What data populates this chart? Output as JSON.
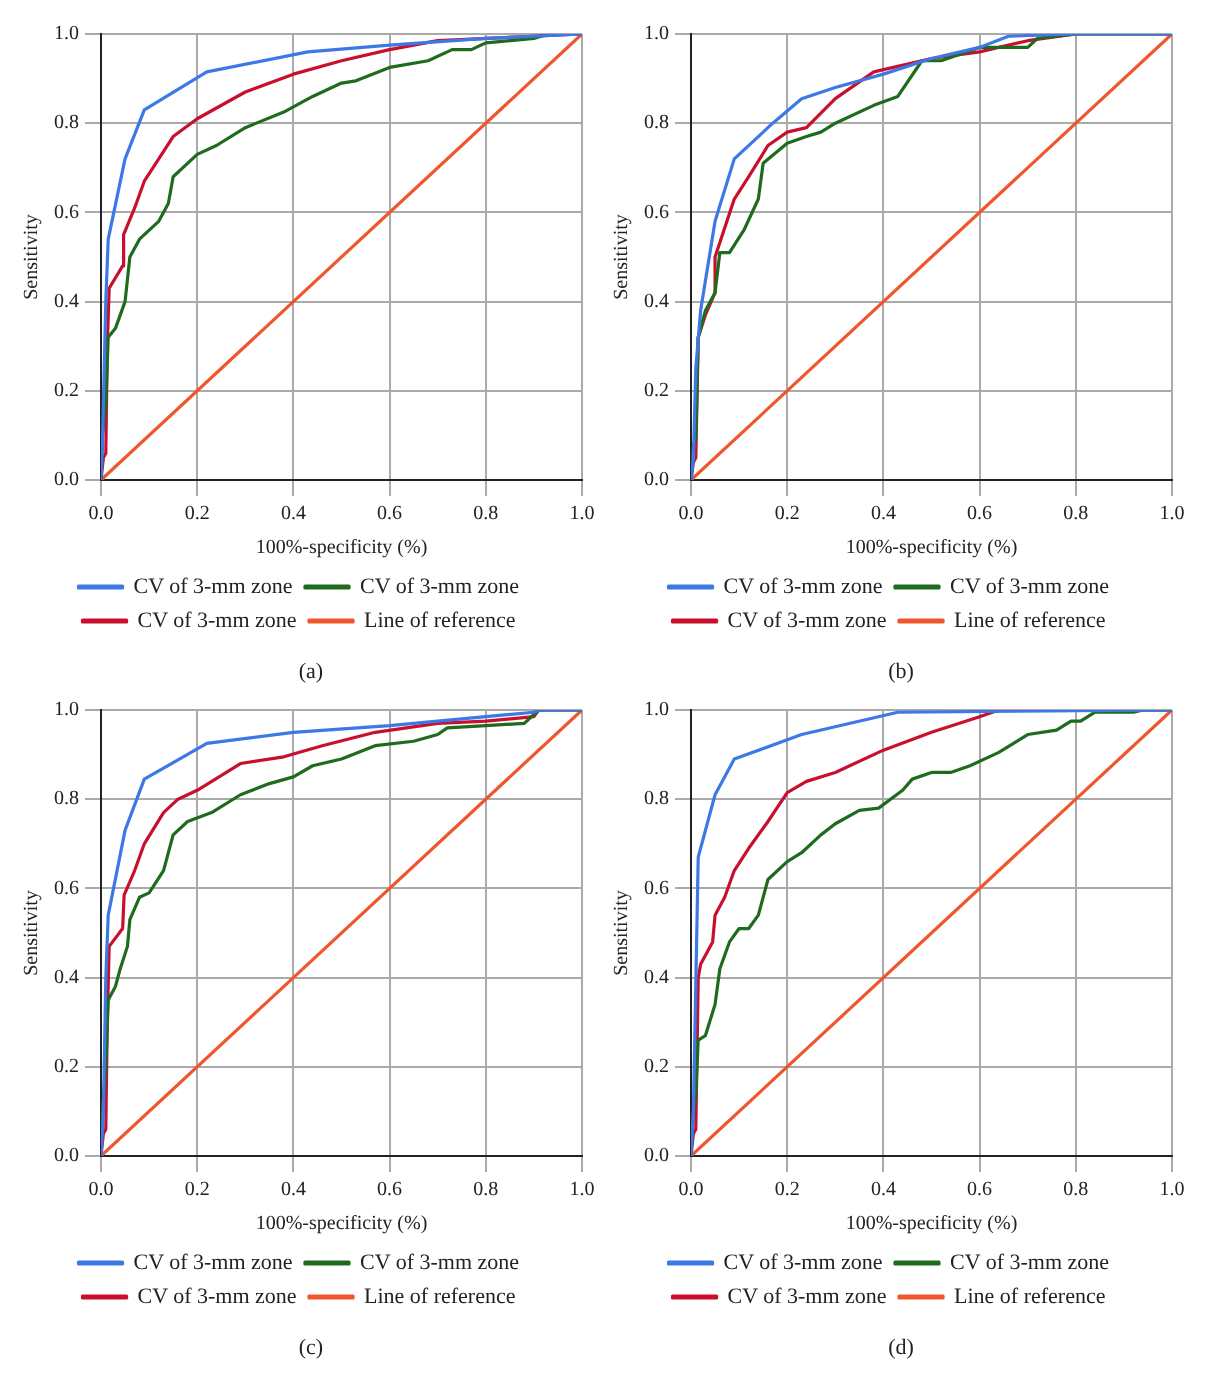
{
  "chart_data": [
    {
      "type": "line",
      "xlabel": "100%-specificity (%)",
      "ylabel": "Sensitivity",
      "annotations": [
        "(a)"
      ],
      "xlim": [
        0,
        1
      ],
      "ylim": [
        0,
        1
      ],
      "xticks": [
        {
          "value": 0,
          "label": "0.0"
        },
        {
          "value": 0.2,
          "label": "0.2"
        },
        {
          "value": 0.4,
          "label": "0.4"
        },
        {
          "value": 0.6,
          "label": "0.6"
        },
        {
          "value": 0.8,
          "label": "0.8"
        },
        {
          "value": 1,
          "label": "1.0"
        }
      ],
      "yticks": [
        {
          "value": 0,
          "label": "0.0"
        },
        {
          "value": 0.2,
          "label": "0.2"
        },
        {
          "value": 0.4,
          "label": "0.4"
        },
        {
          "value": 0.6,
          "label": "0.6"
        },
        {
          "value": 0.8,
          "label": "0.8"
        },
        {
          "value": 1,
          "label": "1.0"
        }
      ],
      "grid": true,
      "legend": "bottom",
      "marker": "none",
      "line_style": "solid",
      "series": [
        {
          "name": "CV of 3-mm zone",
          "color": "#3c78e6",
          "x": [
            0,
            0.003,
            0.01,
            0.015,
            0.05,
            0.09,
            0.22,
            0.43,
            0.6,
            0.8,
            0.9,
            1
          ],
          "values": [
            0,
            0.08,
            0.4,
            0.54,
            0.72,
            0.83,
            0.915,
            0.96,
            0.975,
            0.99,
            0.995,
            1
          ]
        },
        {
          "name": "CV of 3-mm zone",
          "color": "#1e6b1e",
          "x": [
            0,
            0.003,
            0.01,
            0.015,
            0.03,
            0.05,
            0.06,
            0.08,
            0.12,
            0.14,
            0.15,
            0.2,
            0.24,
            0.3,
            0.38,
            0.44,
            0.5,
            0.53,
            0.6,
            0.68,
            0.73,
            0.77,
            0.8,
            0.9,
            0.93,
            1
          ],
          "values": [
            0,
            0.1,
            0.17,
            0.32,
            0.34,
            0.4,
            0.5,
            0.54,
            0.58,
            0.62,
            0.68,
            0.73,
            0.75,
            0.79,
            0.825,
            0.86,
            0.89,
            0.895,
            0.925,
            0.94,
            0.965,
            0.965,
            0.98,
            0.99,
            1,
            1
          ]
        },
        {
          "name": "CV of 3-mm zone",
          "color": "#c8102e",
          "x": [
            0,
            0.005,
            0.01,
            0.013,
            0.017,
            0.045,
            0.047,
            0.07,
            0.09,
            0.15,
            0.2,
            0.3,
            0.4,
            0.5,
            0.6,
            0.7,
            0.9,
            1
          ],
          "values": [
            0,
            0.05,
            0.06,
            0.3,
            0.43,
            0.48,
            0.55,
            0.61,
            0.67,
            0.77,
            0.81,
            0.87,
            0.91,
            0.94,
            0.965,
            0.985,
            0.995,
            1
          ]
        },
        {
          "name": "Line of reference",
          "color": "#f0562e",
          "x": [
            0,
            1
          ],
          "values": [
            0,
            1
          ]
        }
      ]
    },
    {
      "type": "line",
      "xlabel": "100%-specificity (%)",
      "ylabel": "Sensitivity",
      "annotations": [
        "(b)"
      ],
      "xlim": [
        0,
        1
      ],
      "ylim": [
        0,
        1
      ],
      "xticks": [
        {
          "value": 0,
          "label": "0.0"
        },
        {
          "value": 0.2,
          "label": "0.2"
        },
        {
          "value": 0.4,
          "label": "0.4"
        },
        {
          "value": 0.6,
          "label": "0.6"
        },
        {
          "value": 0.8,
          "label": "0.8"
        },
        {
          "value": 1,
          "label": "1.0"
        }
      ],
      "yticks": [
        {
          "value": 0,
          "label": "0.0"
        },
        {
          "value": 0.2,
          "label": "0.2"
        },
        {
          "value": 0.4,
          "label": "0.4"
        },
        {
          "value": 0.6,
          "label": "0.6"
        },
        {
          "value": 0.8,
          "label": "0.8"
        },
        {
          "value": 1,
          "label": "1.0"
        }
      ],
      "grid": true,
      "legend": "bottom",
      "marker": "none",
      "line_style": "solid",
      "series": [
        {
          "name": "CV of 3-mm zone",
          "color": "#3c78e6",
          "x": [
            0,
            0.005,
            0.01,
            0.02,
            0.05,
            0.09,
            0.17,
            0.23,
            0.3,
            0.4,
            0.5,
            0.6,
            0.66,
            0.8,
            1
          ],
          "values": [
            0,
            0.05,
            0.25,
            0.38,
            0.58,
            0.72,
            0.8,
            0.855,
            0.88,
            0.91,
            0.945,
            0.97,
            0.995,
            1,
            1
          ]
        },
        {
          "name": "CV of 3-mm zone",
          "color": "#1e6b1e",
          "x": [
            0,
            0.005,
            0.01,
            0.015,
            0.03,
            0.05,
            0.06,
            0.08,
            0.11,
            0.14,
            0.15,
            0.2,
            0.24,
            0.27,
            0.3,
            0.38,
            0.43,
            0.48,
            0.52,
            0.6,
            0.7,
            0.72,
            0.8,
            1
          ],
          "values": [
            0,
            0.08,
            0.09,
            0.32,
            0.38,
            0.42,
            0.51,
            0.51,
            0.56,
            0.63,
            0.71,
            0.755,
            0.77,
            0.78,
            0.8,
            0.84,
            0.86,
            0.94,
            0.94,
            0.97,
            0.97,
            0.99,
            1,
            1
          ]
        },
        {
          "name": "CV of 3-mm zone",
          "color": "#c8102e",
          "x": [
            0,
            0.005,
            0.01,
            0.015,
            0.03,
            0.05,
            0.05,
            0.09,
            0.12,
            0.16,
            0.2,
            0.24,
            0.3,
            0.38,
            0.5,
            0.6,
            0.7,
            0.8,
            1
          ],
          "values": [
            0,
            0.04,
            0.05,
            0.32,
            0.37,
            0.42,
            0.5,
            0.63,
            0.68,
            0.75,
            0.78,
            0.79,
            0.855,
            0.915,
            0.945,
            0.96,
            0.985,
            1,
            1
          ]
        },
        {
          "name": "Line of reference",
          "color": "#f0562e",
          "x": [
            0,
            1
          ],
          "values": [
            0,
            1
          ]
        }
      ]
    },
    {
      "type": "line",
      "xlabel": "100%-specificity (%)",
      "ylabel": "Sensitivity",
      "annotations": [
        "(c)"
      ],
      "xlim": [
        0,
        1
      ],
      "ylim": [
        0,
        1
      ],
      "xticks": [
        {
          "value": 0,
          "label": "0.0"
        },
        {
          "value": 0.2,
          "label": "0.2"
        },
        {
          "value": 0.4,
          "label": "0.4"
        },
        {
          "value": 0.6,
          "label": "0.6"
        },
        {
          "value": 0.8,
          "label": "0.8"
        },
        {
          "value": 1,
          "label": "1.0"
        }
      ],
      "yticks": [
        {
          "value": 0,
          "label": "0.0"
        },
        {
          "value": 0.2,
          "label": "0.2"
        },
        {
          "value": 0.4,
          "label": "0.4"
        },
        {
          "value": 0.6,
          "label": "0.6"
        },
        {
          "value": 0.8,
          "label": "0.8"
        },
        {
          "value": 1,
          "label": "1.0"
        }
      ],
      "grid": true,
      "legend": "bottom",
      "marker": "none",
      "line_style": "solid",
      "series": [
        {
          "name": "CV of 3-mm zone",
          "color": "#3c78e6",
          "x": [
            0,
            0.005,
            0.01,
            0.015,
            0.05,
            0.09,
            0.22,
            0.4,
            0.6,
            0.8,
            0.9,
            0.91,
            1
          ],
          "values": [
            0,
            0.1,
            0.4,
            0.54,
            0.73,
            0.845,
            0.925,
            0.95,
            0.965,
            0.985,
            0.995,
            1,
            1
          ]
        },
        {
          "name": "CV of 3-mm zone",
          "color": "#1e6b1e",
          "x": [
            0,
            0.003,
            0.01,
            0.015,
            0.03,
            0.04,
            0.055,
            0.06,
            0.08,
            0.1,
            0.13,
            0.15,
            0.18,
            0.23,
            0.29,
            0.35,
            0.4,
            0.44,
            0.5,
            0.57,
            0.65,
            0.7,
            0.72,
            0.8,
            0.88,
            0.9,
            0.91,
            1
          ],
          "values": [
            0,
            0.1,
            0.2,
            0.35,
            0.38,
            0.42,
            0.47,
            0.53,
            0.58,
            0.59,
            0.64,
            0.72,
            0.75,
            0.77,
            0.81,
            0.835,
            0.85,
            0.875,
            0.89,
            0.92,
            0.93,
            0.945,
            0.96,
            0.965,
            0.97,
            0.99,
            1,
            1
          ]
        },
        {
          "name": "CV of 3-mm zone",
          "color": "#c8102e",
          "x": [
            0,
            0.005,
            0.01,
            0.013,
            0.017,
            0.045,
            0.048,
            0.07,
            0.09,
            0.13,
            0.16,
            0.2,
            0.29,
            0.38,
            0.46,
            0.57,
            0.7,
            0.8,
            0.9,
            0.91,
            1
          ],
          "values": [
            0,
            0.05,
            0.06,
            0.3,
            0.47,
            0.51,
            0.585,
            0.64,
            0.7,
            0.77,
            0.8,
            0.82,
            0.88,
            0.895,
            0.92,
            0.95,
            0.97,
            0.975,
            0.985,
            1,
            1
          ]
        },
        {
          "name": "Line of reference",
          "color": "#f0562e",
          "x": [
            0,
            1
          ],
          "values": [
            0,
            1
          ]
        }
      ]
    },
    {
      "type": "line",
      "xlabel": "100%-specificity (%)",
      "ylabel": "Sensitivity",
      "annotations": [
        "(d)"
      ],
      "xlim": [
        0,
        1
      ],
      "ylim": [
        0,
        1
      ],
      "xticks": [
        {
          "value": 0,
          "label": "0.0"
        },
        {
          "value": 0.2,
          "label": "0.2"
        },
        {
          "value": 0.4,
          "label": "0.4"
        },
        {
          "value": 0.6,
          "label": "0.6"
        },
        {
          "value": 0.8,
          "label": "0.8"
        },
        {
          "value": 1,
          "label": "1.0"
        }
      ],
      "yticks": [
        {
          "value": 0,
          "label": "0.0"
        },
        {
          "value": 0.2,
          "label": "0.2"
        },
        {
          "value": 0.4,
          "label": "0.4"
        },
        {
          "value": 0.6,
          "label": "0.6"
        },
        {
          "value": 0.8,
          "label": "0.8"
        },
        {
          "value": 1,
          "label": "1.0"
        }
      ],
      "grid": true,
      "legend": "bottom",
      "marker": "none",
      "line_style": "solid",
      "series": [
        {
          "name": "CV of 3-mm zone",
          "color": "#3c78e6",
          "x": [
            0,
            0.005,
            0.015,
            0.05,
            0.09,
            0.23,
            0.43,
            1
          ],
          "values": [
            0,
            0.1,
            0.67,
            0.81,
            0.89,
            0.945,
            0.995,
            1
          ]
        },
        {
          "name": "CV of 3-mm zone",
          "color": "#1e6b1e",
          "x": [
            0,
            0.005,
            0.01,
            0.015,
            0.03,
            0.05,
            0.06,
            0.08,
            0.1,
            0.12,
            0.14,
            0.16,
            0.2,
            0.23,
            0.27,
            0.3,
            0.35,
            0.39,
            0.44,
            0.46,
            0.5,
            0.54,
            0.58,
            0.64,
            0.7,
            0.76,
            0.79,
            0.81,
            0.84,
            0.92,
            0.94,
            1
          ],
          "values": [
            0,
            0.1,
            0.14,
            0.26,
            0.27,
            0.34,
            0.42,
            0.48,
            0.51,
            0.51,
            0.54,
            0.62,
            0.66,
            0.68,
            0.72,
            0.745,
            0.775,
            0.78,
            0.82,
            0.845,
            0.86,
            0.86,
            0.875,
            0.905,
            0.945,
            0.955,
            0.975,
            0.975,
            0.995,
            0.995,
            1,
            1
          ]
        },
        {
          "name": "CV of 3-mm zone",
          "color": "#c8102e",
          "x": [
            0,
            0.005,
            0.01,
            0.015,
            0.02,
            0.045,
            0.05,
            0.07,
            0.09,
            0.12,
            0.16,
            0.2,
            0.24,
            0.3,
            0.4,
            0.5,
            0.6,
            0.64,
            0.95,
            1
          ],
          "values": [
            0,
            0.05,
            0.06,
            0.4,
            0.43,
            0.48,
            0.54,
            0.58,
            0.64,
            0.69,
            0.75,
            0.815,
            0.84,
            0.86,
            0.91,
            0.95,
            0.985,
            1,
            1,
            1
          ]
        },
        {
          "name": "Line of reference",
          "color": "#f0562e",
          "x": [
            0,
            1
          ],
          "values": [
            0,
            1
          ]
        }
      ]
    }
  ]
}
